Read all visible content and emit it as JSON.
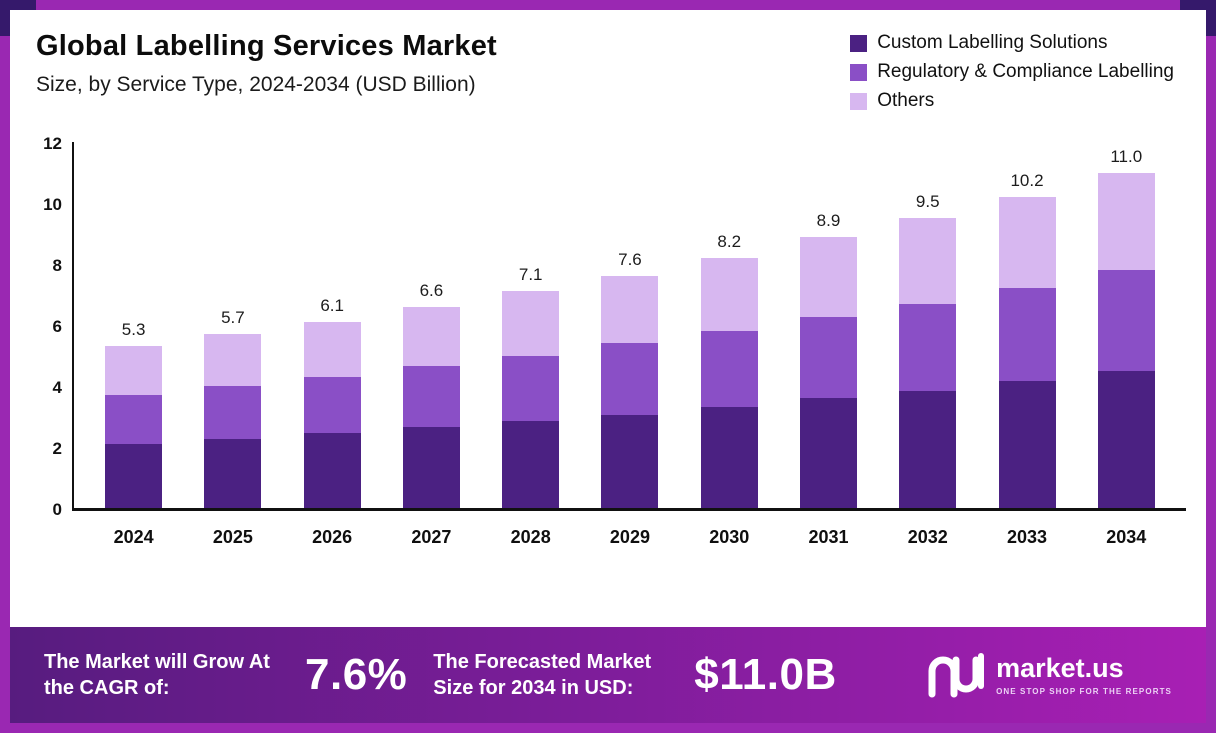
{
  "header": {
    "title": "Global Labelling Services Market",
    "subtitle": "Size, by Service Type, 2024-2034 (USD Billion)"
  },
  "legend": [
    {
      "label": "Custom Labelling Solutions",
      "color": "#4b2182"
    },
    {
      "label": "Regulatory & Compliance Labelling",
      "color": "#8a4fc6"
    },
    {
      "label": "Others",
      "color": "#d7b7f0"
    }
  ],
  "chart_data": {
    "type": "bar",
    "stacked": true,
    "title": "Global Labelling Services Market Size, by Service Type, 2024-2034 (USD Billion)",
    "xlabel": "",
    "ylabel": "USD Billion",
    "ylim": [
      0,
      12
    ],
    "yticks": [
      0,
      2,
      4,
      6,
      8,
      10,
      12
    ],
    "grid": false,
    "legend_position": "top-right",
    "categories": [
      "2024",
      "2025",
      "2026",
      "2027",
      "2028",
      "2029",
      "2030",
      "2031",
      "2032",
      "2033",
      "2034"
    ],
    "series": [
      {
        "name": "Custom Labelling Solutions",
        "color": "#4b2182",
        "values": [
          2.1,
          2.25,
          2.45,
          2.65,
          2.85,
          3.05,
          3.3,
          3.6,
          3.85,
          4.15,
          4.5
        ]
      },
      {
        "name": "Regulatory & Compliance Labelling",
        "color": "#8a4fc6",
        "values": [
          1.6,
          1.75,
          1.85,
          2.0,
          2.15,
          2.35,
          2.5,
          2.65,
          2.85,
          3.05,
          3.3
        ]
      },
      {
        "name": "Others",
        "color": "#d7b7f0",
        "values": [
          1.6,
          1.7,
          1.8,
          1.95,
          2.1,
          2.2,
          2.4,
          2.65,
          2.8,
          3.0,
          3.2
        ]
      }
    ],
    "totals": [
      5.3,
      5.7,
      6.1,
      6.6,
      7.1,
      7.6,
      8.2,
      8.9,
      9.5,
      10.2,
      11.0
    ]
  },
  "footer": {
    "cagr_label": "The Market will Grow At the CAGR of:",
    "cagr_value": "7.6%",
    "forecast_label": "The Forecasted Market Size for 2034 in USD:",
    "forecast_value": "$11.0B",
    "brand": "market.us",
    "brand_tagline": "ONE STOP SHOP FOR THE REPORTS"
  },
  "colors": {
    "frame": "#9a28b2",
    "corner_accent": "#35196b",
    "banner_gradient": [
      "#571c7f",
      "#7d1d9a",
      "#a81fb4"
    ],
    "axis": "#111111",
    "text": "#0c0c0c"
  }
}
